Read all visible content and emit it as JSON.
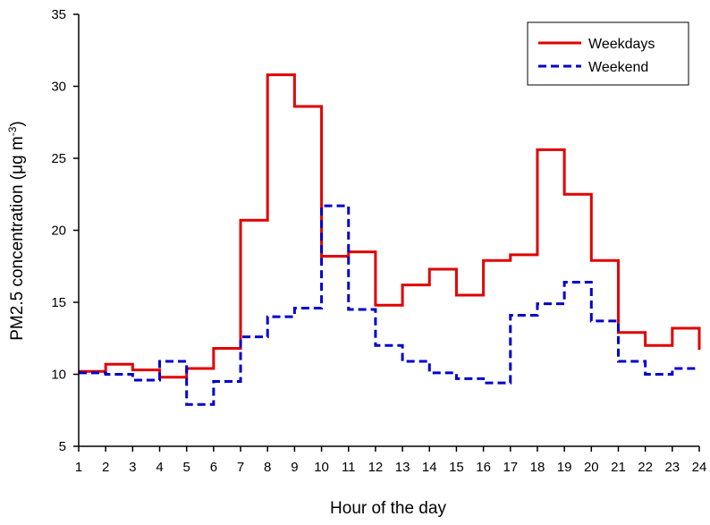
{
  "chart_data": {
    "type": "line",
    "step": true,
    "xlabel": "Hour of the day",
    "ylabel_main": "PM2.5 concentration (μg m",
    "ylabel_sup": "-3",
    "ylabel_close": ")",
    "ylim": [
      5,
      35
    ],
    "yticks": [
      5,
      10,
      15,
      20,
      25,
      30,
      35
    ],
    "xlim": [
      1,
      24
    ],
    "xticks": [
      "1",
      "2",
      "3",
      "4",
      "5",
      "6",
      "7",
      "8",
      "9",
      "10",
      "11",
      "12",
      "13",
      "14",
      "15",
      "16",
      "17",
      "18",
      "19",
      "20",
      "21",
      "22",
      "23",
      "24"
    ],
    "grid": false,
    "legend_position": "top-right",
    "series": [
      {
        "name": "Weekdays",
        "color": "#e00000",
        "dash": "solid",
        "values": [
          10.2,
          10.7,
          10.3,
          9.8,
          10.4,
          11.8,
          20.7,
          30.8,
          28.6,
          18.2,
          18.5,
          14.8,
          16.2,
          17.3,
          15.5,
          17.9,
          18.3,
          25.6,
          22.5,
          17.9,
          12.9,
          12.0,
          13.2,
          11.7
        ]
      },
      {
        "name": "Weekend",
        "color": "#0000cc",
        "dash": "dashed",
        "values": [
          10.1,
          10.0,
          9.6,
          10.9,
          7.9,
          9.5,
          12.6,
          14.0,
          14.6,
          21.7,
          14.5,
          12.0,
          10.9,
          10.1,
          9.7,
          9.4,
          14.1,
          14.9,
          16.4,
          13.7,
          10.9,
          10.0,
          10.4,
          10.4
        ]
      }
    ]
  }
}
